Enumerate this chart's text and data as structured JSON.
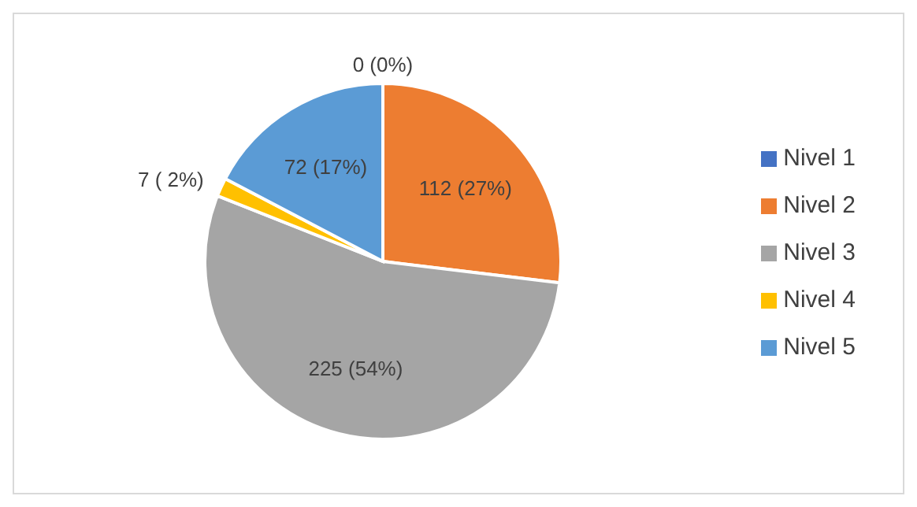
{
  "chart_data": {
    "type": "pie",
    "categories": [
      "Nivel 1",
      "Nivel 2",
      "Nivel 3",
      "Nivel 4",
      "Nivel 5"
    ],
    "values": [
      0,
      112,
      225,
      7,
      72
    ],
    "colors": [
      "#4472c4",
      "#ed7d31",
      "#a5a5a5",
      "#ffc000",
      "#5b9bd5"
    ],
    "value_labels": [
      "0 (0%)",
      "112 (27%)",
      "225 (54%)",
      "7 ( 2%)",
      "72 (17%)"
    ],
    "legend": "right"
  }
}
